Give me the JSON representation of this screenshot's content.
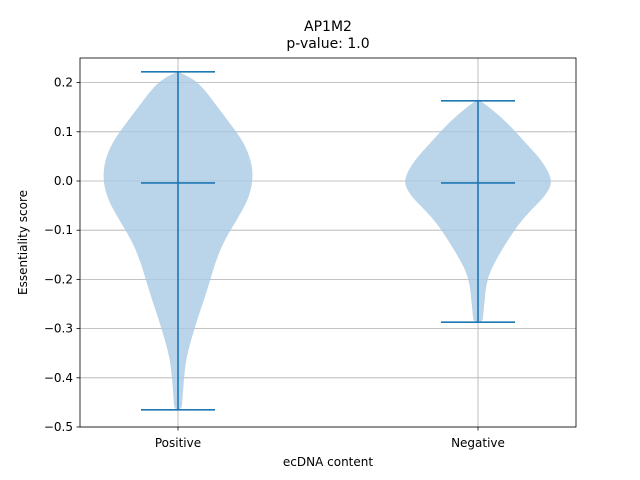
{
  "chart_data": {
    "type": "violin",
    "title": "AP1M2",
    "subtitle": "p-value: 1.0",
    "xlabel": "ecDNA content",
    "ylabel": "Essentiality score",
    "categories": [
      "Positive",
      "Negative"
    ],
    "ylim": [
      -0.5,
      0.25
    ],
    "yticks": [
      -0.5,
      -0.4,
      -0.3,
      -0.2,
      -0.1,
      0.0,
      0.1,
      0.2
    ],
    "ytick_labels": [
      "−0.5",
      "−0.4",
      "−0.3",
      "−0.2",
      "−0.1",
      "0.0",
      "0.1",
      "0.2"
    ],
    "grid": true,
    "violins": [
      {
        "category": "Positive",
        "min": -0.465,
        "max": 0.222,
        "median": -0.004,
        "density": [
          [
            0.222,
            0.0
          ],
          [
            0.21,
            0.18
          ],
          [
            0.19,
            0.33
          ],
          [
            0.16,
            0.48
          ],
          [
            0.12,
            0.68
          ],
          [
            0.08,
            0.87
          ],
          [
            0.04,
            0.98
          ],
          [
            0.0,
            1.0
          ],
          [
            -0.04,
            0.93
          ],
          [
            -0.08,
            0.78
          ],
          [
            -0.12,
            0.62
          ],
          [
            -0.16,
            0.51
          ],
          [
            -0.2,
            0.43
          ],
          [
            -0.24,
            0.35
          ],
          [
            -0.28,
            0.26
          ],
          [
            -0.32,
            0.18
          ],
          [
            -0.36,
            0.11
          ],
          [
            -0.4,
            0.08
          ],
          [
            -0.44,
            0.06
          ],
          [
            -0.465,
            0.05
          ]
        ]
      },
      {
        "category": "Negative",
        "min": -0.287,
        "max": 0.163,
        "median": -0.004,
        "density": [
          [
            0.163,
            0.03
          ],
          [
            0.15,
            0.15
          ],
          [
            0.12,
            0.38
          ],
          [
            0.08,
            0.62
          ],
          [
            0.04,
            0.86
          ],
          [
            0.0,
            1.0
          ],
          [
            -0.03,
            0.9
          ],
          [
            -0.06,
            0.7
          ],
          [
            -0.09,
            0.53
          ],
          [
            -0.12,
            0.4
          ],
          [
            -0.15,
            0.28
          ],
          [
            -0.18,
            0.17
          ],
          [
            -0.21,
            0.11
          ],
          [
            -0.24,
            0.09
          ],
          [
            -0.27,
            0.07
          ],
          [
            -0.287,
            0.06
          ]
        ]
      }
    ],
    "colors": {
      "fill": "#a9c9e3",
      "line": "#1f77b4",
      "grid": "#b0b0b0"
    }
  }
}
